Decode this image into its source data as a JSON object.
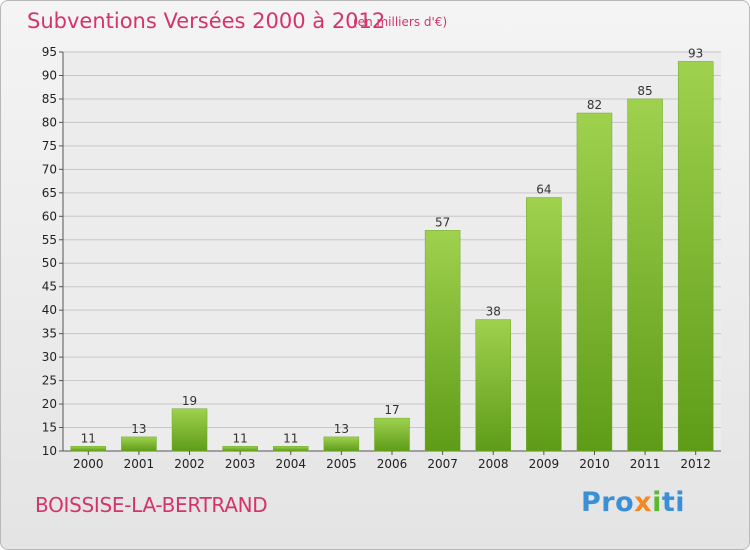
{
  "header": {
    "title": "Subventions Versées 2000 à 2012",
    "subtitle": "(en milliers d'€)"
  },
  "footer": {
    "place": "BOISSISE-LA-BERTRAND",
    "logo_parts": [
      "Pro",
      "x",
      "i",
      "ti"
    ]
  },
  "colors": {
    "title": "#d6336c",
    "bar_top": "#9fd14e",
    "bar_bottom": "#5e9c18",
    "grid": "#c8c8c8"
  },
  "chart_data": {
    "type": "bar",
    "title": "Subventions Versées 2000 à 2012",
    "subtitle": "(en milliers d'€)",
    "categories": [
      "2000",
      "2001",
      "2002",
      "2003",
      "2004",
      "2005",
      "2006",
      "2007",
      "2008",
      "2009",
      "2010",
      "2011",
      "2012"
    ],
    "values": [
      11,
      13,
      19,
      11,
      11,
      13,
      17,
      57,
      38,
      64,
      82,
      85,
      93
    ],
    "ylim": [
      10,
      95
    ],
    "yticks": [
      10,
      15,
      20,
      25,
      30,
      35,
      40,
      45,
      50,
      55,
      60,
      65,
      70,
      75,
      80,
      85,
      90,
      95
    ],
    "grid": true,
    "legend": "none"
  }
}
